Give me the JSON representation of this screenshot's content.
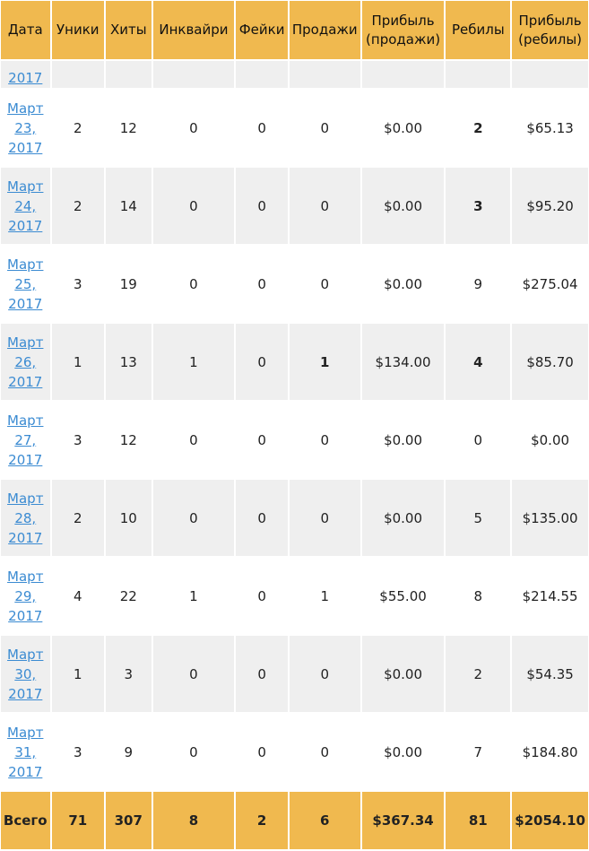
{
  "headers": {
    "date": "Дата",
    "uniques": "Уники",
    "hits": "Хиты",
    "inquiries": "Инквайри",
    "fakes": "Фейки",
    "sales": "Продажи",
    "profit_sales_line1": "Прибыль",
    "profit_sales_line2": "(продажи)",
    "rebills": "Ребилы",
    "profit_rebills_line1": "Прибыль",
    "profit_rebills_line2": "(ребилы)"
  },
  "partial_row": {
    "year": "2017"
  },
  "rows": [
    {
      "month": "Март",
      "day": "23,",
      "year": "2017",
      "uniques": "2",
      "hits": "12",
      "inquiries": "0",
      "fakes": "0",
      "sales": "0",
      "profit_sales": "$0.00",
      "rebills": "2",
      "profit_rebills": "$65.13"
    },
    {
      "month": "Март",
      "day": "24,",
      "year": "2017",
      "uniques": "2",
      "hits": "14",
      "inquiries": "0",
      "fakes": "0",
      "sales": "0",
      "profit_sales": "$0.00",
      "rebills": "3",
      "profit_rebills": "$95.20"
    },
    {
      "month": "Март",
      "day": "25,",
      "year": "2017",
      "uniques": "3",
      "hits": "19",
      "inquiries": "0",
      "fakes": "0",
      "sales": "0",
      "profit_sales": "$0.00",
      "rebills": "9",
      "profit_rebills": "$275.04"
    },
    {
      "month": "Март",
      "day": "26,",
      "year": "2017",
      "uniques": "1",
      "hits": "13",
      "inquiries": "1",
      "fakes": "0",
      "sales": "1",
      "profit_sales": "$134.00",
      "rebills": "4",
      "profit_rebills": "$85.70"
    },
    {
      "month": "Март",
      "day": "27,",
      "year": "2017",
      "uniques": "3",
      "hits": "12",
      "inquiries": "0",
      "fakes": "0",
      "sales": "0",
      "profit_sales": "$0.00",
      "rebills": "0",
      "profit_rebills": "$0.00"
    },
    {
      "month": "Март",
      "day": "28,",
      "year": "2017",
      "uniques": "2",
      "hits": "10",
      "inquiries": "0",
      "fakes": "0",
      "sales": "0",
      "profit_sales": "$0.00",
      "rebills": "5",
      "profit_rebills": "$135.00"
    },
    {
      "month": "Март",
      "day": "29,",
      "year": "2017",
      "uniques": "4",
      "hits": "22",
      "inquiries": "1",
      "fakes": "0",
      "sales": "1",
      "profit_sales": "$55.00",
      "rebills": "8",
      "profit_rebills": "$214.55"
    },
    {
      "month": "Март",
      "day": "30,",
      "year": "2017",
      "uniques": "1",
      "hits": "3",
      "inquiries": "0",
      "fakes": "0",
      "sales": "0",
      "profit_sales": "$0.00",
      "rebills": "2",
      "profit_rebills": "$54.35"
    },
    {
      "month": "Март",
      "day": "31,",
      "year": "2017",
      "uniques": "3",
      "hits": "9",
      "inquiries": "0",
      "fakes": "0",
      "sales": "0",
      "profit_sales": "$0.00",
      "rebills": "7",
      "profit_rebills": "$184.80"
    }
  ],
  "totals": {
    "label": "Всего",
    "uniques": "71",
    "hits": "307",
    "inquiries": "8",
    "fakes": "2",
    "sales": "6",
    "profit_sales": "$367.34",
    "rebills": "81",
    "profit_rebills": "$2054.10"
  },
  "colors": {
    "header_bg": "#f0b94f",
    "row_alt_bg": "#efefef",
    "link": "#3b8bd2"
  }
}
